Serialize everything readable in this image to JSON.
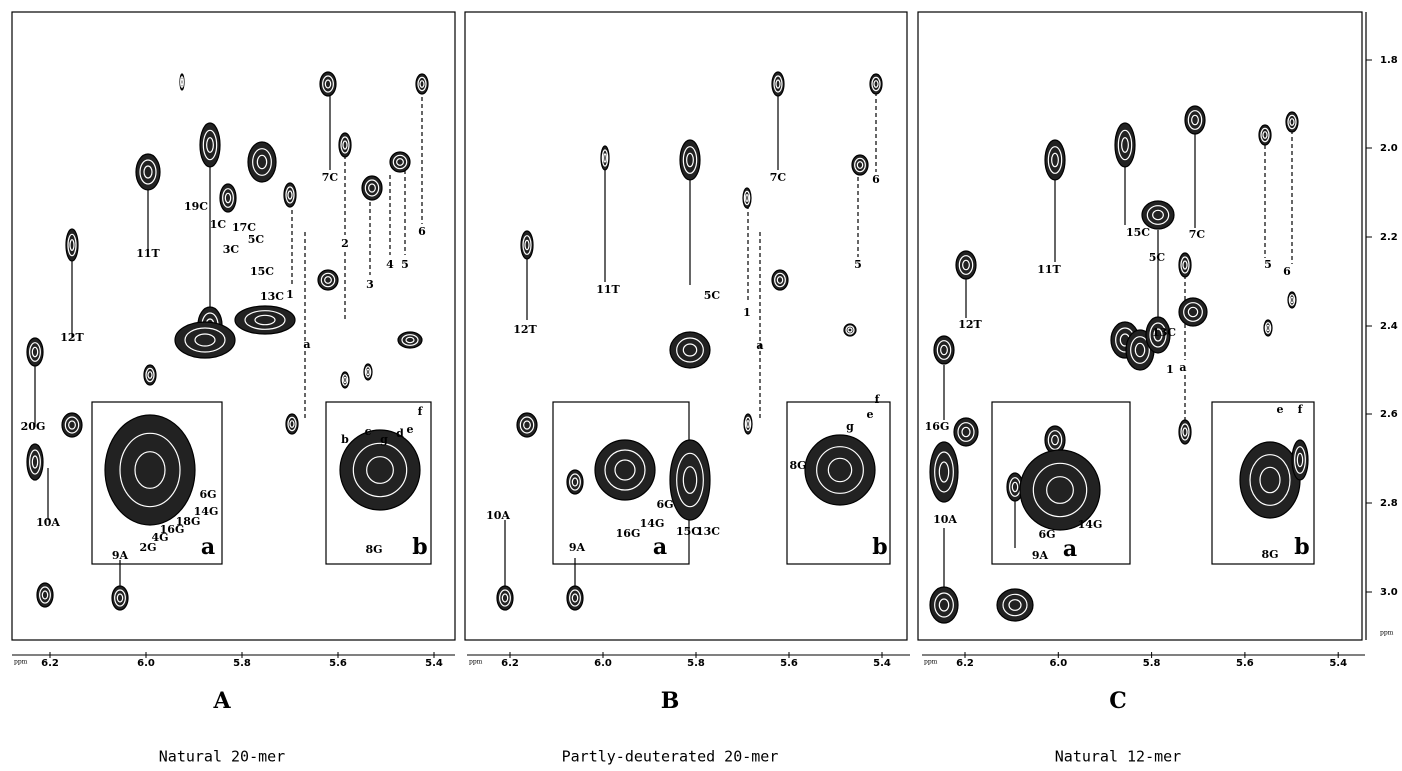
{
  "y_axis": {
    "ticks": [
      "1.8",
      "2.0",
      "2.2",
      "2.4",
      "2.6",
      "2.8",
      "3.0"
    ],
    "unit": "ppm"
  },
  "panels": [
    {
      "letter": "A",
      "caption": "Natural 20-mer",
      "x_unit": "ppm",
      "x_ticks": [
        "6.2",
        "6.0",
        "5.8",
        "5.6",
        "5.4"
      ],
      "annotations": [
        "20G",
        "12T",
        "10A",
        "9A",
        "11T",
        "19C",
        "1C",
        "3C",
        "17C",
        "5C",
        "15C",
        "13C",
        "7C",
        "2",
        "1",
        "3",
        "4",
        "5",
        "6",
        "a",
        "6G",
        "14G",
        "18G",
        "16G",
        "4G",
        "2G",
        "a",
        "b",
        "c",
        "g",
        "d",
        "e",
        "f",
        "8G",
        "b"
      ]
    },
    {
      "letter": "B",
      "caption": "Partly-deuterated 20-mer",
      "x_unit": "ppm",
      "x_ticks": [
        "6.2",
        "6.0",
        "5.8",
        "5.6",
        "5.4"
      ],
      "annotations": [
        "12T",
        "10A",
        "9A",
        "11T",
        "5C",
        "15C",
        "13C",
        "7C",
        "1",
        "a",
        "5",
        "6",
        "6G",
        "14G",
        "16G",
        "a",
        "g",
        "e",
        "f",
        "8G",
        "b"
      ]
    },
    {
      "letter": "C",
      "caption": "Natural 12-mer",
      "x_unit": "ppm",
      "x_ticks": [
        "6.2",
        "6.0",
        "5.8",
        "5.6",
        "5.4"
      ],
      "annotations": [
        "16G",
        "12T",
        "10A",
        "9A",
        "11T",
        "15C",
        "5C",
        "13C",
        "1",
        "a",
        "7C",
        "5",
        "6",
        "6G",
        "14G",
        "a",
        "e",
        "f",
        "8G",
        "b"
      ]
    }
  ]
}
